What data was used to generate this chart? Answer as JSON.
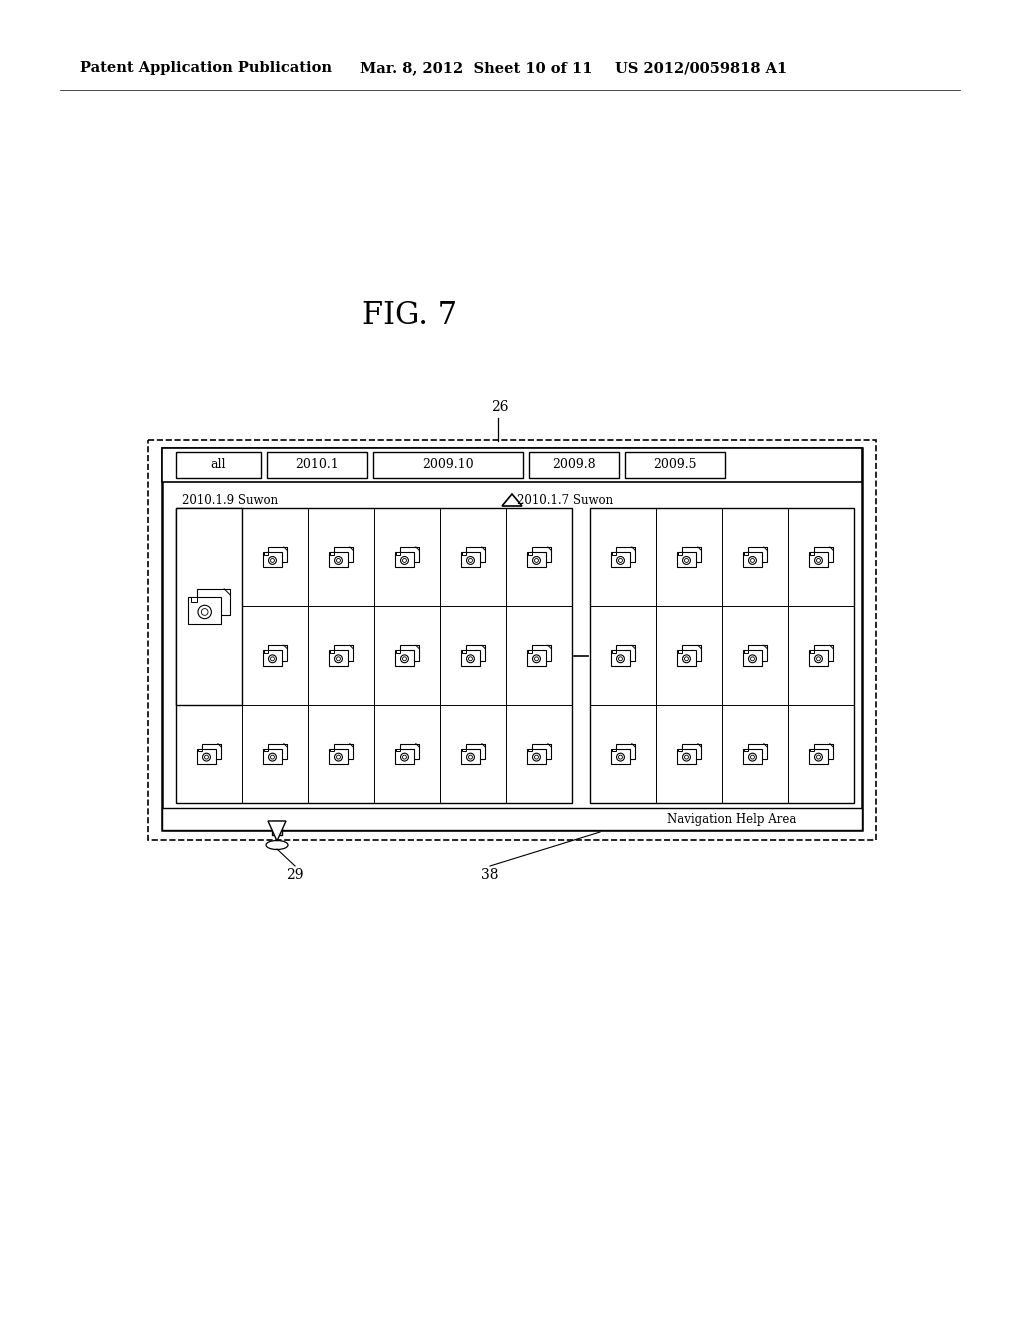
{
  "title_left": "Patent Application Publication",
  "title_mid": "Mar. 8, 2012  Sheet 10 of 11",
  "title_right": "US 2012/0059818 A1",
  "fig_label": "FIG. 7",
  "label_26": "26",
  "label_29": "29",
  "label_38": "38",
  "tab_labels": [
    "all",
    "2010.1",
    "2009.10",
    "2009.8",
    "2009.5"
  ],
  "group1_label": "2010.1.9 Suwon",
  "group2_label": "2010.1.7 Suwon",
  "nav_help": "Navigation Help Area",
  "bg_color": "#ffffff"
}
